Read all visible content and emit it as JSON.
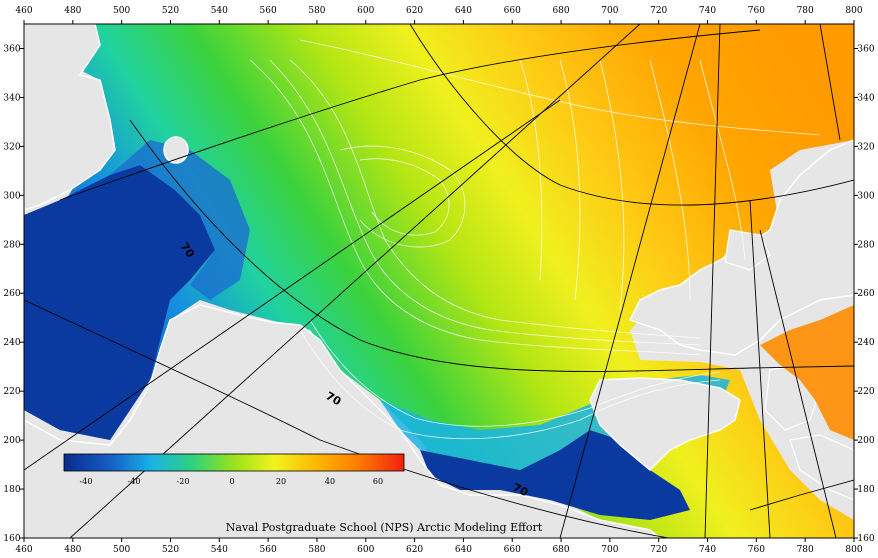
{
  "axes": {
    "x_ticks": [
      "460",
      "480",
      "500",
      "520",
      "540",
      "560",
      "580",
      "600",
      "620",
      "640",
      "660",
      "680",
      "700",
      "720",
      "740",
      "760",
      "780",
      "800"
    ],
    "y_ticks": [
      "360",
      "340",
      "320",
      "300",
      "280",
      "260",
      "240",
      "220",
      "200",
      "180",
      "160"
    ],
    "x_range": [
      460,
      800
    ],
    "y_range": [
      160,
      370
    ]
  },
  "colorbar": {
    "ticks": [
      "-40",
      "-40",
      "-20",
      "0",
      "20",
      "40",
      "60"
    ],
    "colors": [
      "#0a2a8c",
      "#1560c8",
      "#19b4e6",
      "#2ed27a",
      "#9be21c",
      "#f2f21e",
      "#ffb400",
      "#ff7a00",
      "#f02010"
    ]
  },
  "contour_labels": [
    "70",
    "70",
    "70"
  ],
  "credit": "Naval Postgraduate School (NPS) Arctic Modeling Effort",
  "colors": {
    "land": "#e6e6e6",
    "deep_blue": "#0a3a9a",
    "orange": "#ffa500"
  }
}
